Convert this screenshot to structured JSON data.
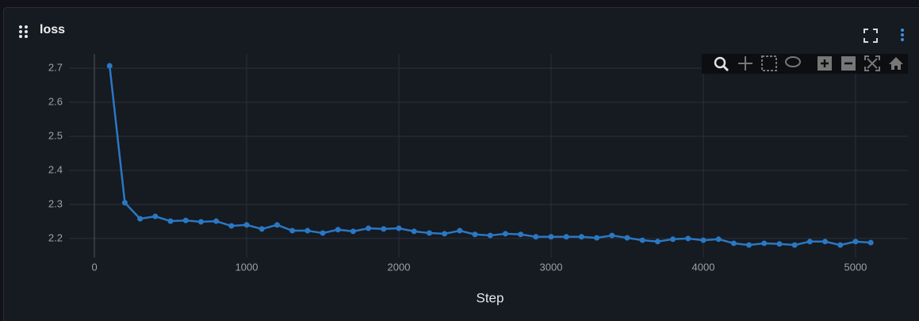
{
  "chart_data": {
    "type": "line",
    "title": "loss",
    "x_label": "Step",
    "x": [
      100,
      200,
      300,
      400,
      500,
      600,
      700,
      800,
      900,
      1000,
      1100,
      1200,
      1300,
      1400,
      1500,
      1600,
      1700,
      1800,
      1900,
      2000,
      2100,
      2200,
      2300,
      2400,
      2500,
      2600,
      2700,
      2800,
      2900,
      3000,
      3100,
      3200,
      3300,
      3400,
      3500,
      3600,
      3700,
      3800,
      3900,
      4000,
      4100,
      4200,
      4300,
      4400,
      4500,
      4600,
      4700,
      4800,
      4900,
      5000,
      5100
    ],
    "values": [
      2.707,
      2.305,
      2.258,
      2.265,
      2.251,
      2.253,
      2.249,
      2.251,
      2.237,
      2.24,
      2.228,
      2.24,
      2.223,
      2.223,
      2.216,
      2.226,
      2.221,
      2.23,
      2.228,
      2.23,
      2.221,
      2.216,
      2.214,
      2.223,
      2.212,
      2.209,
      2.214,
      2.212,
      2.205,
      2.205,
      2.205,
      2.205,
      2.202,
      2.209,
      2.202,
      2.195,
      2.191,
      2.198,
      2.2,
      2.195,
      2.198,
      2.186,
      2.181,
      2.186,
      2.184,
      2.181,
      2.191,
      2.191,
      2.181,
      2.191,
      2.188
    ],
    "color": "#2a78c4",
    "xlim": [
      -167,
      5344
    ],
    "ylim": [
      2.144,
      2.742
    ],
    "xticks": [
      0,
      1000,
      2000,
      3000,
      4000,
      5000
    ],
    "yticks": [
      2.2,
      2.3,
      2.4,
      2.5,
      2.6,
      2.7
    ],
    "grid": true
  }
}
